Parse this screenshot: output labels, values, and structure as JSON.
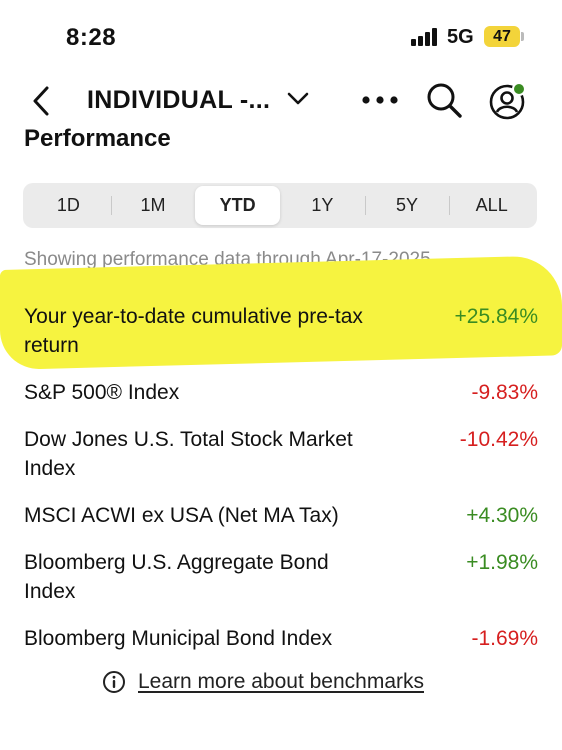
{
  "status_bar": {
    "time": "8:28",
    "network": "5G",
    "battery": "47",
    "battery_color": "#f3d43a"
  },
  "nav": {
    "back_icon": "chevron-left-icon",
    "account_title": "INDIVIDUAL -...",
    "dropdown_icon": "chevron-down-icon",
    "more_icon": "more-horizontal-icon",
    "search_icon": "search-icon",
    "profile_icon": "user-profile-icon",
    "profile_badge_color": "#3a8c22"
  },
  "section_title": "Performance",
  "periods": {
    "selected": "YTD",
    "items": [
      "1D",
      "1M",
      "YTD",
      "1Y",
      "5Y",
      "ALL"
    ]
  },
  "note": "Showing performance data through Apr-17-2025",
  "highlight_color": "#f6f340",
  "rows": [
    {
      "name": "Your year-to-date cumulative pre-tax return",
      "value": "+25.84%",
      "trend": "pos"
    },
    {
      "name": "S&P 500® Index",
      "value": "-9.83%",
      "trend": "neg"
    },
    {
      "name": "Dow Jones U.S. Total Stock Market Index",
      "value": "-10.42%",
      "trend": "neg"
    },
    {
      "name": "MSCI ACWI ex USA (Net MA Tax)",
      "value": "+4.30%",
      "trend": "pos"
    },
    {
      "name": "Bloomberg U.S. Aggregate Bond Index",
      "value": "+1.98%",
      "trend": "pos"
    },
    {
      "name": "Bloomberg Municipal Bond Index",
      "value": "-1.69%",
      "trend": "neg"
    }
  ],
  "learn_more": {
    "icon": "info-icon",
    "label": "Learn more about benchmarks"
  }
}
